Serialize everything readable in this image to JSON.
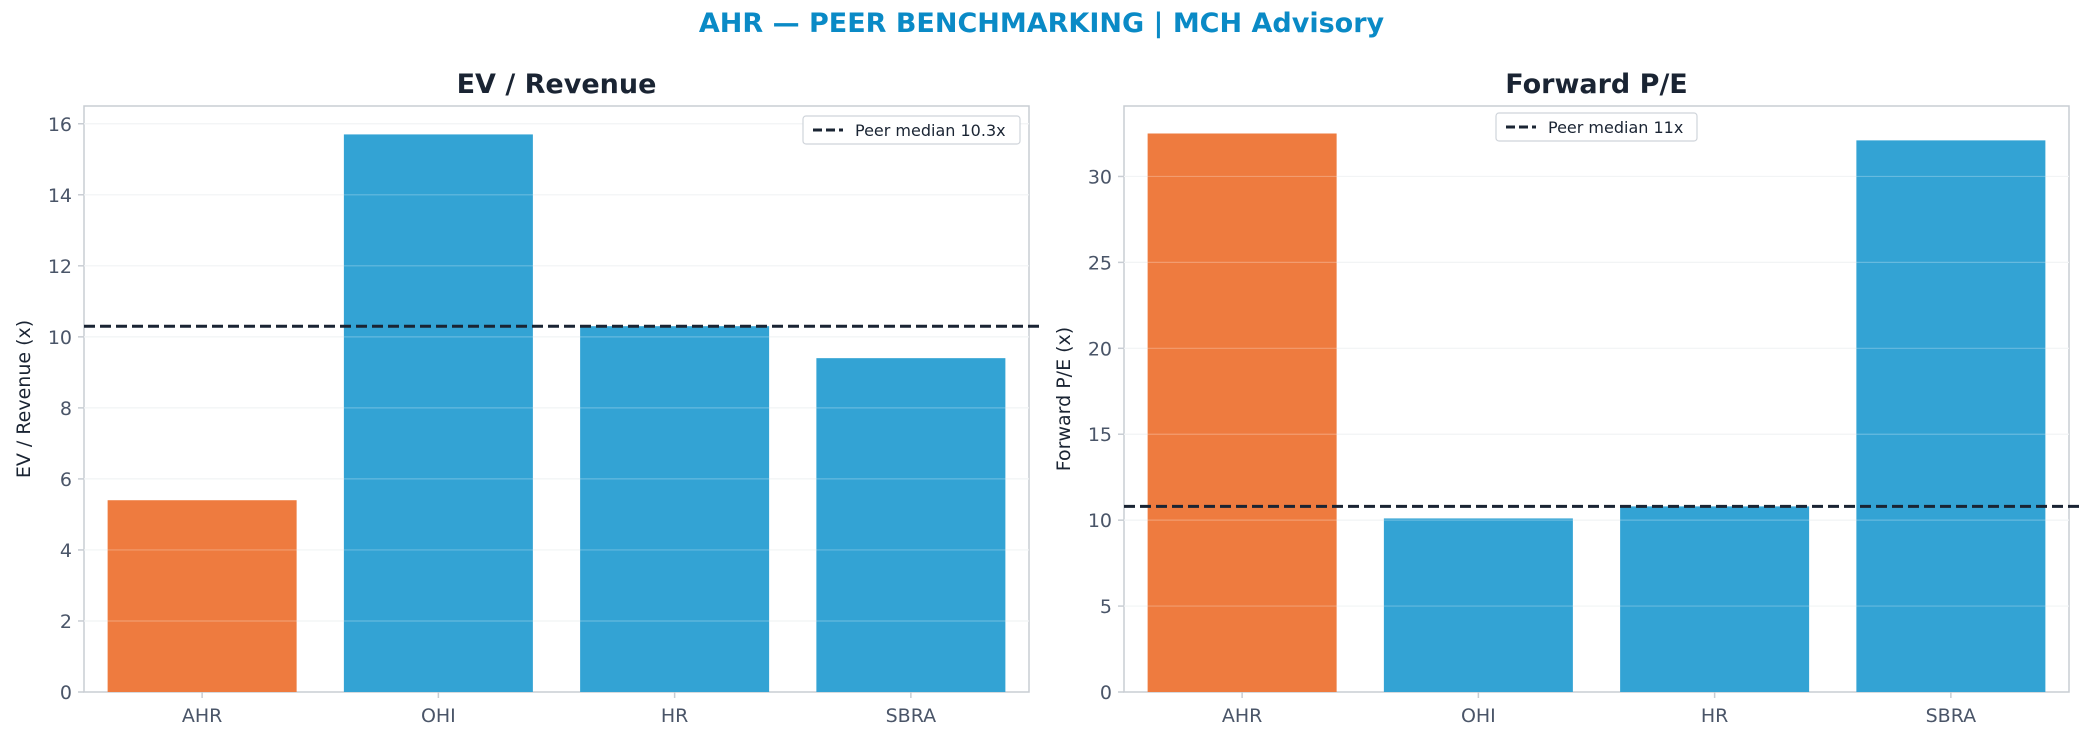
{
  "figure": {
    "title": "AHR — PEER BENCHMARKING | MCH Advisory",
    "title_color": "#0a8ac6"
  },
  "colors": {
    "highlight": "#ee7b3f",
    "peer": "#33a3d4",
    "median_line": "#1a2433",
    "grid": "#eef0f2",
    "axis": "#c8cdd3"
  },
  "chart_data": [
    {
      "type": "bar",
      "title": "EV / Revenue",
      "ylabel": "EV / Revenue (x)",
      "categories": [
        "AHR",
        "OHI",
        "HR",
        "SBRA"
      ],
      "values": [
        5.4,
        15.7,
        10.3,
        9.4
      ],
      "highlight": "AHR",
      "ylim": [
        0,
        16.5
      ],
      "yticks": [
        0,
        2,
        4,
        6,
        8,
        10,
        12,
        14,
        16
      ],
      "median": 10.3,
      "legend_label": "Peer median 10.3x",
      "legend_position": "top-right",
      "grid": true
    },
    {
      "type": "bar",
      "title": "Forward P/E",
      "ylabel": "Forward P/E (x)",
      "categories": [
        "AHR",
        "OHI",
        "HR",
        "SBRA"
      ],
      "values": [
        32.5,
        10.1,
        10.8,
        32.1
      ],
      "highlight": "AHR",
      "ylim": [
        0,
        34.1
      ],
      "yticks": [
        0,
        5,
        10,
        15,
        20,
        25,
        30
      ],
      "median": 10.8,
      "legend_label": "Peer median 11x",
      "legend_position": "top-center",
      "grid": true
    }
  ]
}
